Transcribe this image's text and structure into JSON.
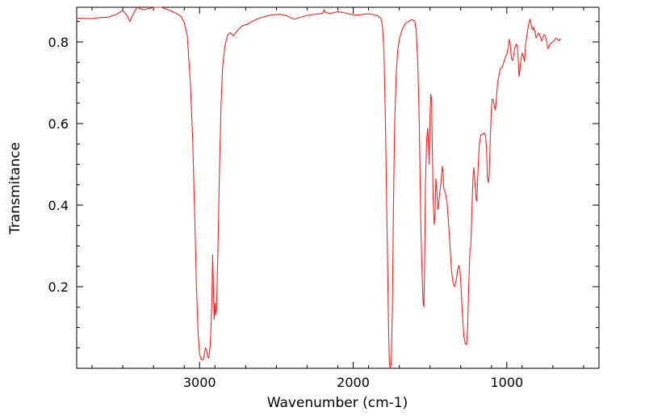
{
  "chart_data": {
    "type": "line",
    "title": "",
    "xlabel": "Wavenumber (cm-1)",
    "ylabel": "Transmitance",
    "x_reversed": true,
    "xlim": [
      3800,
      400
    ],
    "ylim": [
      0.0,
      0.885
    ],
    "x_ticks": [
      3000,
      2000,
      1000
    ],
    "x_tick_labels": [
      "3000",
      "2000",
      "1000"
    ],
    "y_ticks": [
      0.2,
      0.4,
      0.6,
      0.8
    ],
    "y_tick_labels": [
      "0.2",
      "0.4",
      "0.6",
      "0.8"
    ],
    "grid": false,
    "legend": "none",
    "series": [
      {
        "color": "#ff2020",
        "points": [
          [
            3800,
            0.858
          ],
          [
            3700,
            0.857
          ],
          [
            3640,
            0.86
          ],
          [
            3600,
            0.86
          ],
          [
            3540,
            0.868
          ],
          [
            3500,
            0.877
          ],
          [
            3470,
            0.864
          ],
          [
            3455,
            0.85
          ],
          [
            3440,
            0.862
          ],
          [
            3420,
            0.877
          ],
          [
            3405,
            0.885
          ],
          [
            3390,
            0.882
          ],
          [
            3360,
            0.879
          ],
          [
            3330,
            0.882
          ],
          [
            3290,
            0.885
          ],
          [
            3250,
            0.885
          ],
          [
            3200,
            0.878
          ],
          [
            3150,
            0.87
          ],
          [
            3120,
            0.862
          ],
          [
            3100,
            0.848
          ],
          [
            3080,
            0.815
          ],
          [
            3060,
            0.7
          ],
          [
            3045,
            0.56
          ],
          [
            3030,
            0.35
          ],
          [
            3020,
            0.2
          ],
          [
            3010,
            0.09
          ],
          [
            3000,
            0.035
          ],
          [
            2990,
            0.022
          ],
          [
            2978,
            0.02
          ],
          [
            2970,
            0.03
          ],
          [
            2962,
            0.05
          ],
          [
            2955,
            0.045
          ],
          [
            2948,
            0.03
          ],
          [
            2940,
            0.025
          ],
          [
            2930,
            0.06
          ],
          [
            2920,
            0.17
          ],
          [
            2915,
            0.278
          ],
          [
            2910,
            0.2
          ],
          [
            2905,
            0.12
          ],
          [
            2900,
            0.16
          ],
          [
            2895,
            0.13
          ],
          [
            2890,
            0.145
          ],
          [
            2880,
            0.3
          ],
          [
            2870,
            0.5
          ],
          [
            2860,
            0.65
          ],
          [
            2850,
            0.74
          ],
          [
            2835,
            0.79
          ],
          [
            2820,
            0.815
          ],
          [
            2800,
            0.823
          ],
          [
            2780,
            0.815
          ],
          [
            2760,
            0.825
          ],
          [
            2740,
            0.833
          ],
          [
            2720,
            0.84
          ],
          [
            2690,
            0.843
          ],
          [
            2660,
            0.85
          ],
          [
            2620,
            0.857
          ],
          [
            2580,
            0.862
          ],
          [
            2530,
            0.866
          ],
          [
            2480,
            0.868
          ],
          [
            2430,
            0.864
          ],
          [
            2400,
            0.858
          ],
          [
            2380,
            0.856
          ],
          [
            2350,
            0.86
          ],
          [
            2300,
            0.865
          ],
          [
            2250,
            0.868
          ],
          [
            2200,
            0.87
          ],
          [
            2190,
            0.879
          ],
          [
            2180,
            0.872
          ],
          [
            2150,
            0.87
          ],
          [
            2100,
            0.874
          ],
          [
            2060,
            0.872
          ],
          [
            2020,
            0.868
          ],
          [
            1990,
            0.866
          ],
          [
            1960,
            0.866
          ],
          [
            1930,
            0.868
          ],
          [
            1900,
            0.869
          ],
          [
            1870,
            0.867
          ],
          [
            1840,
            0.864
          ],
          [
            1820,
            0.858
          ],
          [
            1810,
            0.84
          ],
          [
            1800,
            0.78
          ],
          [
            1790,
            0.6
          ],
          [
            1780,
            0.35
          ],
          [
            1770,
            0.1
          ],
          [
            1765,
            0.02
          ],
          [
            1760,
            0.0
          ],
          [
            1752,
            0.01
          ],
          [
            1745,
            0.15
          ],
          [
            1738,
            0.4
          ],
          [
            1730,
            0.6
          ],
          [
            1720,
            0.72
          ],
          [
            1710,
            0.78
          ],
          [
            1700,
            0.805
          ],
          [
            1690,
            0.82
          ],
          [
            1680,
            0.832
          ],
          [
            1660,
            0.845
          ],
          [
            1640,
            0.85
          ],
          [
            1620,
            0.855
          ],
          [
            1600,
            0.852
          ],
          [
            1590,
            0.83
          ],
          [
            1580,
            0.75
          ],
          [
            1570,
            0.6
          ],
          [
            1560,
            0.35
          ],
          [
            1553,
            0.25
          ],
          [
            1545,
            0.16
          ],
          [
            1540,
            0.15
          ],
          [
            1535,
            0.25
          ],
          [
            1530,
            0.45
          ],
          [
            1522,
            0.56
          ],
          [
            1515,
            0.588
          ],
          [
            1510,
            0.55
          ],
          [
            1505,
            0.5
          ],
          [
            1500,
            0.62
          ],
          [
            1495,
            0.672
          ],
          [
            1490,
            0.66
          ],
          [
            1485,
            0.55
          ],
          [
            1480,
            0.42
          ],
          [
            1473,
            0.352
          ],
          [
            1468,
            0.37
          ],
          [
            1462,
            0.465
          ],
          [
            1456,
            0.44
          ],
          [
            1450,
            0.39
          ],
          [
            1445,
            0.395
          ],
          [
            1440,
            0.42
          ],
          [
            1430,
            0.45
          ],
          [
            1420,
            0.495
          ],
          [
            1415,
            0.48
          ],
          [
            1410,
            0.44
          ],
          [
            1400,
            0.43
          ],
          [
            1390,
            0.41
          ],
          [
            1380,
            0.36
          ],
          [
            1370,
            0.3
          ],
          [
            1360,
            0.24
          ],
          [
            1350,
            0.21
          ],
          [
            1340,
            0.2
          ],
          [
            1330,
            0.215
          ],
          [
            1320,
            0.24
          ],
          [
            1312,
            0.252
          ],
          [
            1305,
            0.24
          ],
          [
            1298,
            0.2
          ],
          [
            1290,
            0.14
          ],
          [
            1280,
            0.08
          ],
          [
            1270,
            0.06
          ],
          [
            1262,
            0.058
          ],
          [
            1255,
            0.1
          ],
          [
            1248,
            0.2
          ],
          [
            1240,
            0.29
          ],
          [
            1234,
            0.3
          ],
          [
            1228,
            0.38
          ],
          [
            1220,
            0.47
          ],
          [
            1214,
            0.492
          ],
          [
            1208,
            0.46
          ],
          [
            1200,
            0.415
          ],
          [
            1195,
            0.41
          ],
          [
            1188,
            0.48
          ],
          [
            1180,
            0.545
          ],
          [
            1170,
            0.572
          ],
          [
            1160,
            0.572
          ],
          [
            1150,
            0.577
          ],
          [
            1140,
            0.572
          ],
          [
            1132,
            0.54
          ],
          [
            1127,
            0.47
          ],
          [
            1120,
            0.455
          ],
          [
            1115,
            0.47
          ],
          [
            1108,
            0.56
          ],
          [
            1100,
            0.64
          ],
          [
            1095,
            0.66
          ],
          [
            1088,
            0.658
          ],
          [
            1080,
            0.64
          ],
          [
            1075,
            0.633
          ],
          [
            1068,
            0.66
          ],
          [
            1060,
            0.7
          ],
          [
            1050,
            0.72
          ],
          [
            1040,
            0.736
          ],
          [
            1030,
            0.738
          ],
          [
            1020,
            0.75
          ],
          [
            1010,
            0.762
          ],
          [
            1000,
            0.77
          ],
          [
            990,
            0.788
          ],
          [
            985,
            0.806
          ],
          [
            978,
            0.795
          ],
          [
            970,
            0.76
          ],
          [
            962,
            0.755
          ],
          [
            955,
            0.77
          ],
          [
            945,
            0.79
          ],
          [
            938,
            0.795
          ],
          [
            930,
            0.788
          ],
          [
            924,
            0.74
          ],
          [
            920,
            0.715
          ],
          [
            915,
            0.73
          ],
          [
            908,
            0.758
          ],
          [
            900,
            0.773
          ],
          [
            892,
            0.765
          ],
          [
            885,
            0.752
          ],
          [
            878,
            0.79
          ],
          [
            868,
            0.82
          ],
          [
            858,
            0.842
          ],
          [
            850,
            0.856
          ],
          [
            845,
            0.85
          ],
          [
            838,
            0.835
          ],
          [
            830,
            0.83
          ],
          [
            825,
            0.836
          ],
          [
            818,
            0.826
          ],
          [
            810,
            0.81
          ],
          [
            802,
            0.815
          ],
          [
            795,
            0.822
          ],
          [
            788,
            0.82
          ],
          [
            780,
            0.81
          ],
          [
            772,
            0.802
          ],
          [
            765,
            0.812
          ],
          [
            758,
            0.818
          ],
          [
            750,
            0.815
          ],
          [
            740,
            0.8
          ],
          [
            733,
            0.784
          ],
          [
            728,
            0.786
          ],
          [
            720,
            0.795
          ],
          [
            710,
            0.797
          ],
          [
            700,
            0.801
          ],
          [
            690,
            0.804
          ],
          [
            680,
            0.81
          ],
          [
            660,
            0.803
          ],
          [
            650,
            0.808
          ]
        ]
      }
    ]
  }
}
